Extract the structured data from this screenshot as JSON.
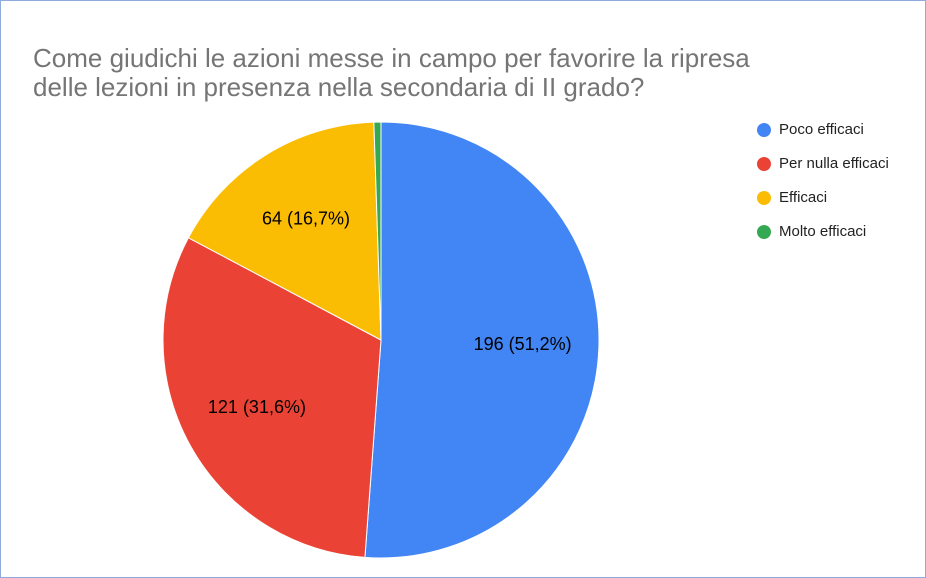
{
  "chart_data": {
    "type": "pie",
    "title": [
      "Come giudichi le azioni messe in campo per favorire la ripresa",
      "delle lezioni in presenza nella secondaria di II grado?"
    ],
    "categories": [
      "Poco efficaci",
      "Per nulla efficaci",
      "Efficaci",
      "Molto efficaci"
    ],
    "values": [
      196,
      121,
      64,
      2
    ],
    "value_labels": [
      "196 (51,2%)",
      "121 (31,6%)",
      "64 (16,7%)",
      null
    ],
    "colors": [
      "#4285f4",
      "#ea4335",
      "#fbbc04",
      "#34a853"
    ],
    "legend": "right"
  }
}
